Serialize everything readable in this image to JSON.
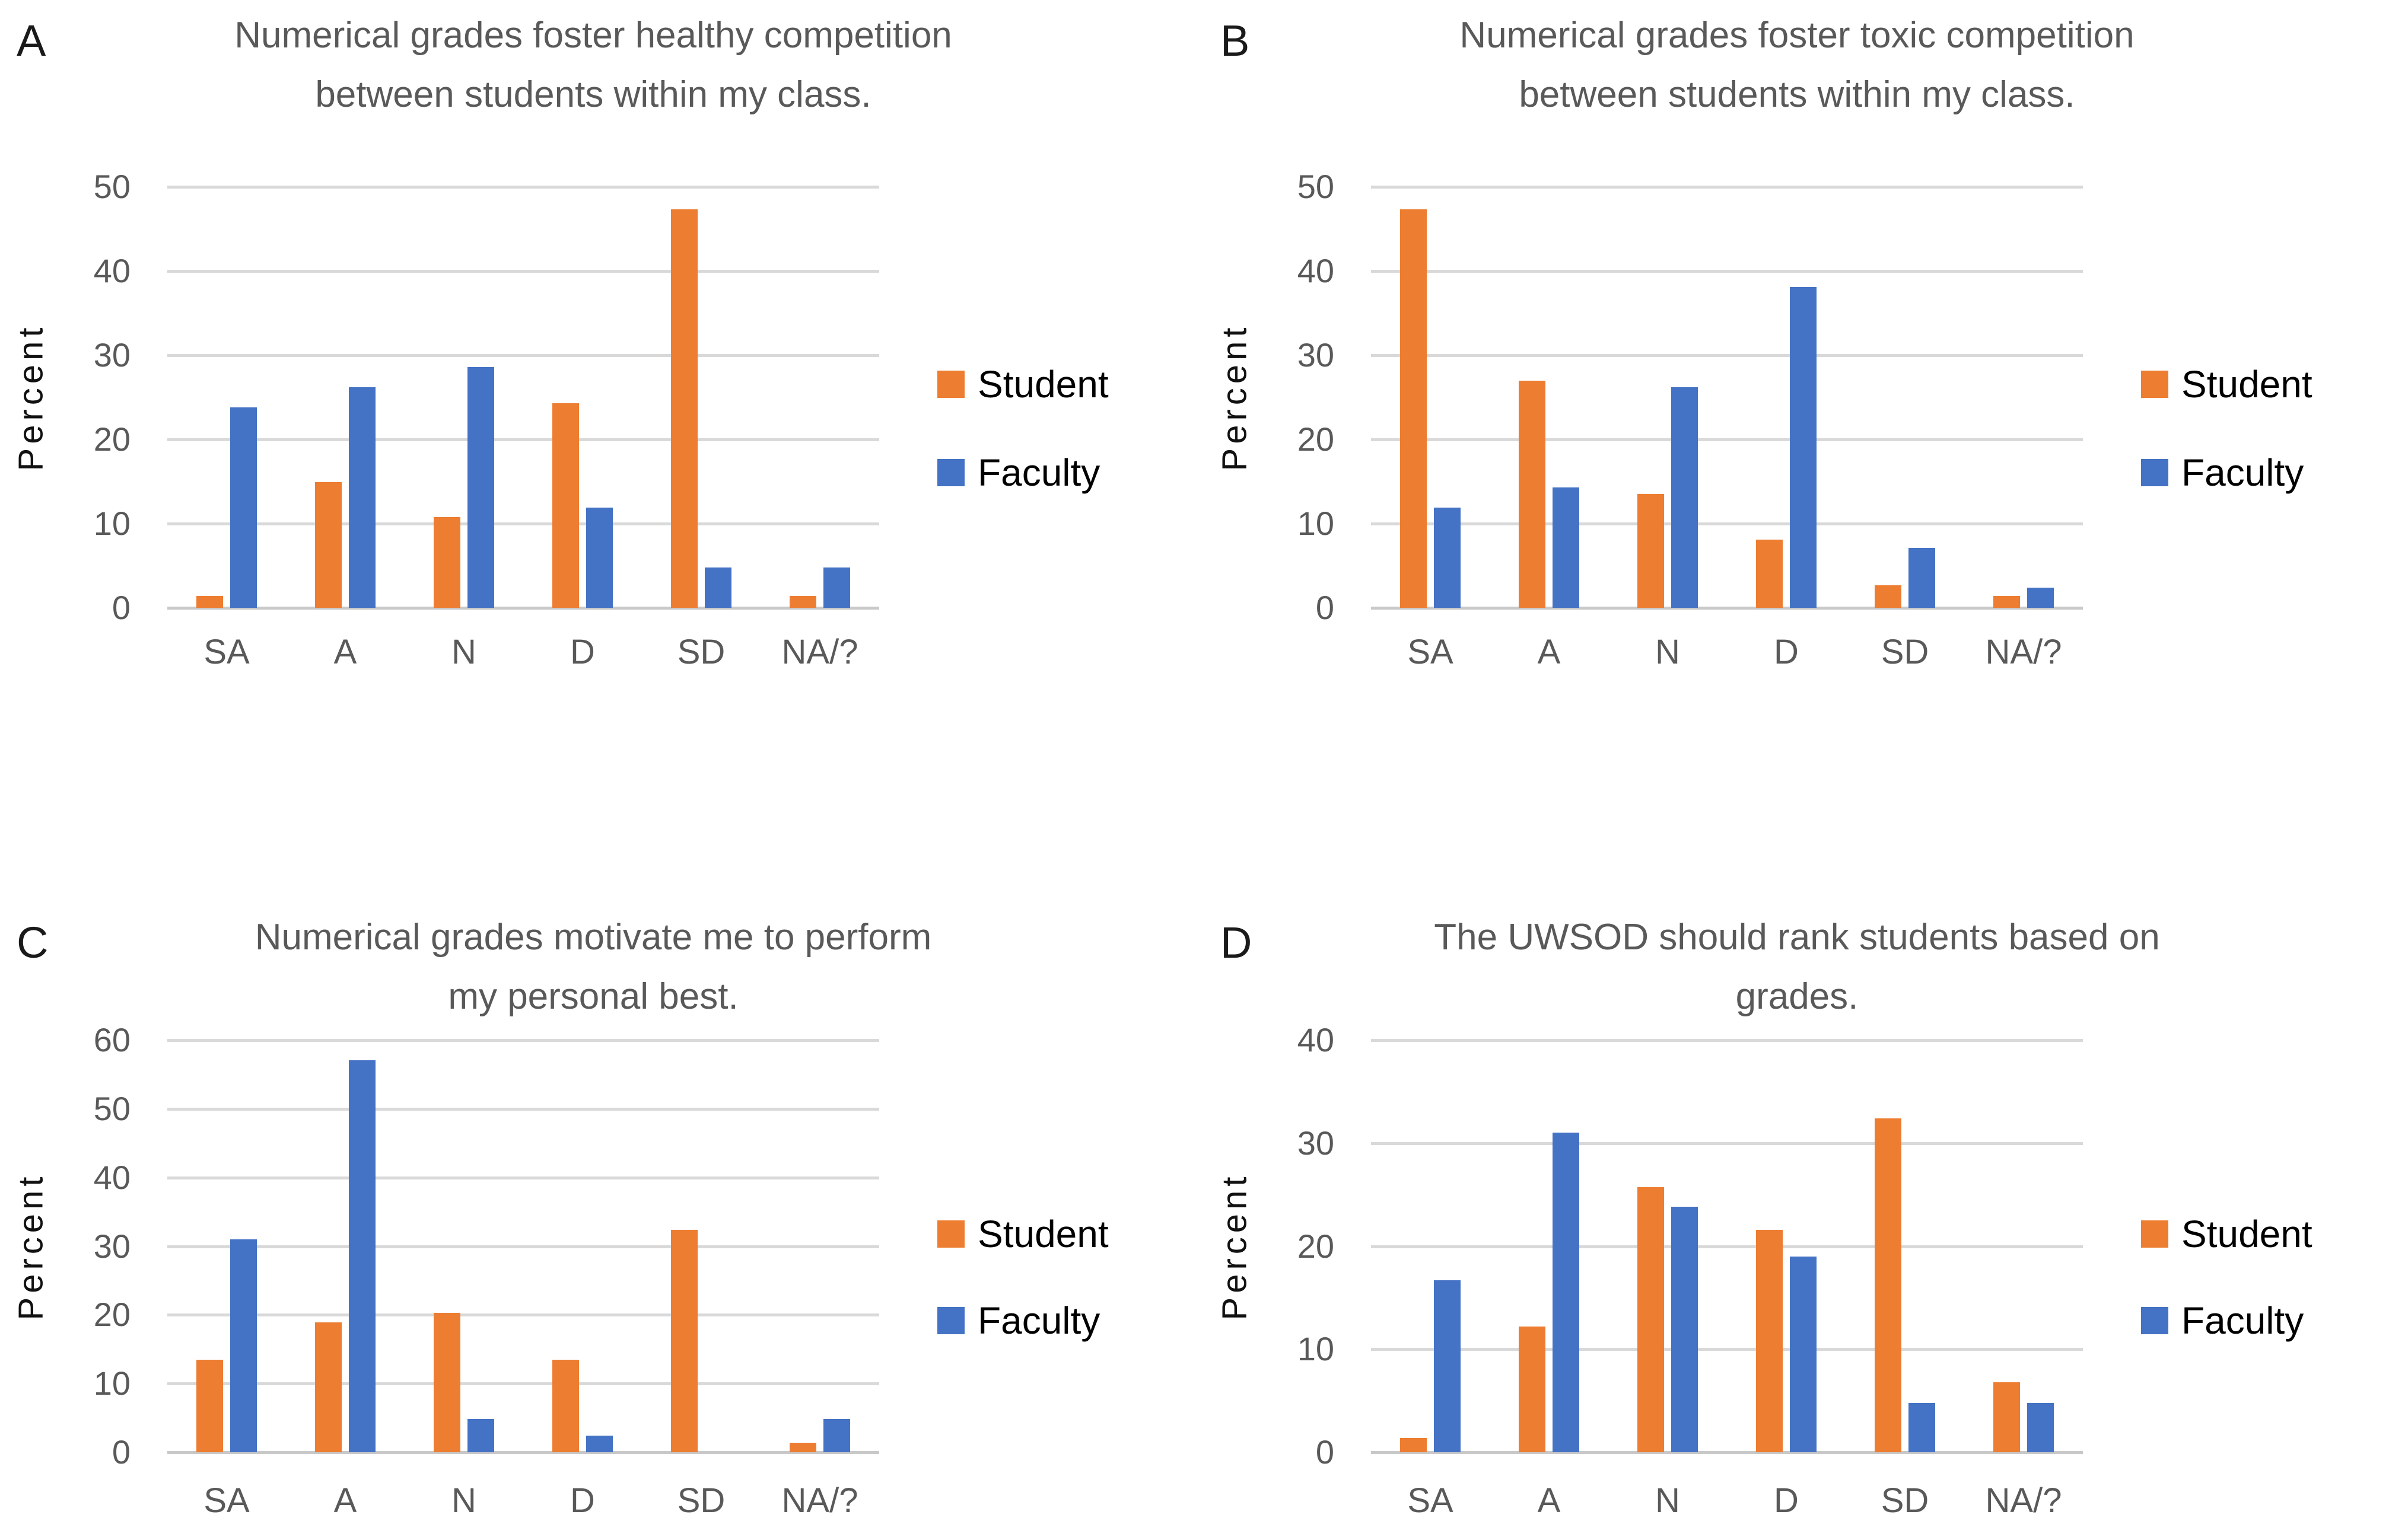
{
  "figure": {
    "background_color": "#ffffff",
    "gridline_color": "#d9d9d9",
    "title_color": "#595959",
    "axis_text_color": "#595959",
    "student_color": "#ED7D31",
    "faculty_color": "#4472C4"
  },
  "chart_data": [
    {
      "type": "bar",
      "panel": "A",
      "title": "Numerical grades foster healthy competition between students within my class.",
      "title_lines": [
        "Numerical grades foster healthy competition",
        "between students within my class."
      ],
      "ylabel": "Percent",
      "xlabel": "",
      "ylim": [
        0,
        50
      ],
      "yticks": [
        50,
        40,
        30,
        20,
        10,
        0
      ],
      "grid": "horizontal",
      "legend_position": "right",
      "categories": [
        "SA",
        "A",
        "N",
        "D",
        "SD",
        "NA/?"
      ],
      "series": [
        {
          "name": "Student",
          "color": "#ED7D31",
          "values": [
            1.4,
            14.9,
            10.8,
            24.3,
            47.3,
            1.4
          ]
        },
        {
          "name": "Faculty",
          "color": "#4472C4",
          "values": [
            23.8,
            26.2,
            28.6,
            11.9,
            4.8,
            4.8
          ]
        }
      ]
    },
    {
      "type": "bar",
      "panel": "B",
      "title": "Numerical grades foster toxic competition between students within my class.",
      "title_lines": [
        "Numerical grades foster toxic competition",
        "between students within my class."
      ],
      "ylabel": "Percent",
      "xlabel": "",
      "ylim": [
        0,
        50
      ],
      "yticks": [
        50,
        40,
        30,
        20,
        10,
        0
      ],
      "grid": "horizontal",
      "legend_position": "right",
      "categories": [
        "SA",
        "A",
        "N",
        "D",
        "SD",
        "NA/?"
      ],
      "series": [
        {
          "name": "Student",
          "color": "#ED7D31",
          "values": [
            47.3,
            27.0,
            13.5,
            8.1,
            2.7,
            1.4
          ]
        },
        {
          "name": "Faculty",
          "color": "#4472C4",
          "values": [
            11.9,
            14.3,
            26.2,
            38.1,
            7.1,
            2.4
          ]
        }
      ]
    },
    {
      "type": "bar",
      "panel": "C",
      "title": "Numerical grades motivate me to perform my personal best.",
      "title_lines": [
        "Numerical grades motivate me to perform",
        "my personal best."
      ],
      "ylabel": "Percent",
      "xlabel": "",
      "ylim": [
        0,
        60
      ],
      "yticks": [
        60,
        50,
        40,
        30,
        20,
        10,
        0
      ],
      "grid": "horizontal",
      "legend_position": "right",
      "categories": [
        "SA",
        "A",
        "N",
        "D",
        "SD",
        "NA/?"
      ],
      "series": [
        {
          "name": "Student",
          "color": "#ED7D31",
          "values": [
            13.5,
            18.9,
            20.3,
            13.5,
            32.4,
            1.4
          ]
        },
        {
          "name": "Faculty",
          "color": "#4472C4",
          "values": [
            31.0,
            57.1,
            4.8,
            2.4,
            0,
            4.8
          ]
        }
      ]
    },
    {
      "type": "bar",
      "panel": "D",
      "title": "The UWSOD should rank students based on grades.",
      "title_lines": [
        "The UWSOD should rank students based on",
        "grades."
      ],
      "ylabel": "Percent",
      "xlabel": "",
      "ylim": [
        0,
        40
      ],
      "yticks": [
        40,
        30,
        20,
        10,
        0
      ],
      "grid": "horizontal",
      "legend_position": "right",
      "categories": [
        "SA",
        "A",
        "N",
        "D",
        "SD",
        "NA/?"
      ],
      "series": [
        {
          "name": "Student",
          "color": "#ED7D31",
          "values": [
            1.4,
            12.2,
            25.7,
            21.6,
            32.4,
            6.8
          ]
        },
        {
          "name": "Faculty",
          "color": "#4472C4",
          "values": [
            16.7,
            31.0,
            23.8,
            19.0,
            4.8,
            4.8
          ]
        }
      ]
    }
  ]
}
